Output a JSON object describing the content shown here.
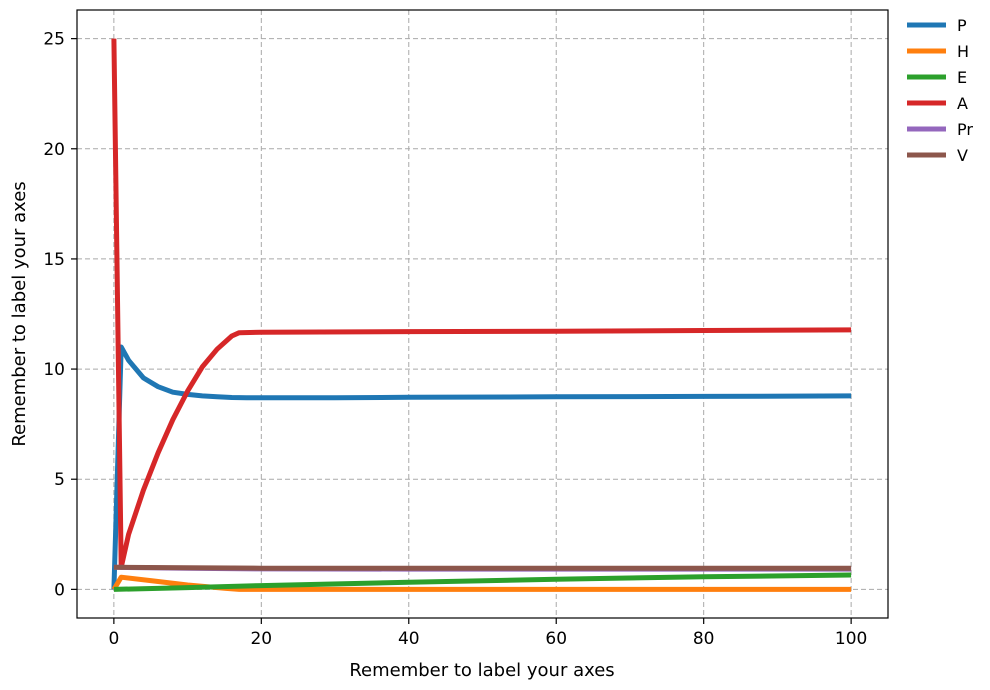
{
  "chart_data": {
    "type": "line",
    "title": "",
    "xlabel": "Remember to label your axes",
    "ylabel": "Remember to label your axes",
    "xlim": [
      -5,
      105
    ],
    "ylim": [
      -1.3,
      26.3
    ],
    "xticks": [
      0,
      20,
      40,
      60,
      80,
      100
    ],
    "yticks": [
      0,
      5,
      10,
      15,
      20,
      25
    ],
    "grid": true,
    "legend_position": "outside-top-right",
    "series": [
      {
        "name": "P",
        "color": "#1f77b4",
        "x": [
          0,
          1,
          2,
          4,
          6,
          8,
          10,
          12,
          14,
          16,
          18,
          20,
          30,
          40,
          60,
          80,
          100
        ],
        "y": [
          0,
          11.0,
          10.4,
          9.6,
          9.2,
          8.95,
          8.85,
          8.78,
          8.74,
          8.71,
          8.7,
          8.7,
          8.7,
          8.72,
          8.74,
          8.76,
          8.78
        ]
      },
      {
        "name": "H",
        "color": "#ff7f0e",
        "x": [
          0,
          1,
          5,
          10,
          15,
          17,
          20,
          40,
          60,
          80,
          100
        ],
        "y": [
          0,
          0.55,
          0.4,
          0.2,
          0.05,
          0,
          0,
          0,
          0,
          0,
          0
        ]
      },
      {
        "name": "E",
        "color": "#2ca02c",
        "x": [
          0,
          10,
          20,
          40,
          60,
          80,
          100
        ],
        "y": [
          0,
          0.08,
          0.17,
          0.32,
          0.46,
          0.57,
          0.65
        ]
      },
      {
        "name": "A",
        "color": "#d62728",
        "x": [
          0,
          1,
          2,
          4,
          6,
          8,
          10,
          12,
          14,
          16,
          17,
          20,
          40,
          60,
          80,
          100
        ],
        "y": [
          25,
          1.0,
          2.5,
          4.5,
          6.2,
          7.7,
          9.0,
          10.1,
          10.9,
          11.5,
          11.65,
          11.67,
          11.7,
          11.72,
          11.75,
          11.78
        ]
      },
      {
        "name": "Pr",
        "color": "#9467bd",
        "x": [
          0,
          10,
          20,
          40,
          60,
          80,
          100
        ],
        "y": [
          1.0,
          0.96,
          0.93,
          0.92,
          0.92,
          0.92,
          0.92
        ]
      },
      {
        "name": "V",
        "color": "#8c564b",
        "x": [
          0,
          10,
          20,
          40,
          60,
          80,
          100
        ],
        "y": [
          1.0,
          0.98,
          0.96,
          0.96,
          0.96,
          0.96,
          0.96
        ]
      }
    ]
  }
}
